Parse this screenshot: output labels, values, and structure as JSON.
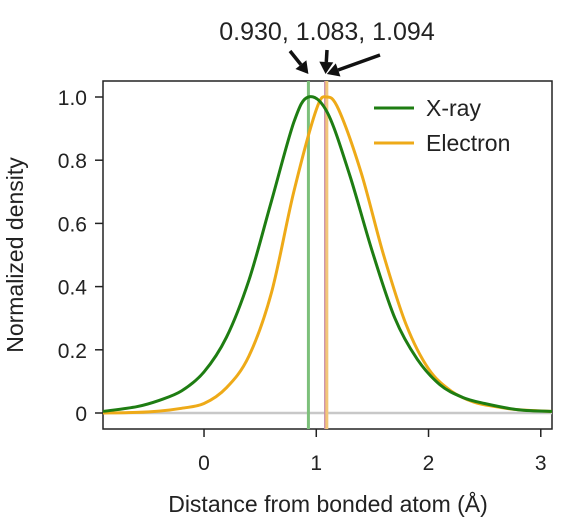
{
  "chart_data": {
    "type": "line",
    "title": "",
    "xlabel": "Distance from bonded atom (Å)",
    "ylabel": "Normalized density",
    "xlim": [
      -0.9,
      3.1
    ],
    "ylim": [
      0,
      1.0
    ],
    "x_ticks": [
      0,
      1,
      2,
      3
    ],
    "x_tick_labels": [
      "0",
      "1",
      "2",
      "3"
    ],
    "y_ticks": [
      0,
      0.2,
      0.4,
      0.6,
      0.8,
      1.0
    ],
    "y_tick_labels": [
      "0",
      "0.2",
      "0.4",
      "0.6",
      "0.8",
      "1.0"
    ],
    "grid": false,
    "legend_position": "top-right",
    "series": [
      {
        "name": "X-ray",
        "color": "#1e7d12",
        "x": [
          -0.9,
          -0.6,
          -0.4,
          -0.2,
          0.0,
          0.2,
          0.4,
          0.6,
          0.8,
          0.93,
          1.1,
          1.3,
          1.5,
          1.7,
          1.9,
          2.1,
          2.3,
          2.5,
          2.8,
          3.1
        ],
        "y": [
          0.005,
          0.02,
          0.04,
          0.07,
          0.13,
          0.24,
          0.42,
          0.67,
          0.92,
          1.0,
          0.95,
          0.75,
          0.51,
          0.3,
          0.17,
          0.09,
          0.05,
          0.03,
          0.01,
          0.005
        ]
      },
      {
        "name": "Electron",
        "color": "#eeaa18",
        "x": [
          -0.9,
          -0.6,
          -0.4,
          -0.2,
          0.0,
          0.2,
          0.4,
          0.6,
          0.8,
          1.0,
          1.094,
          1.2,
          1.4,
          1.6,
          1.8,
          2.0,
          2.2,
          2.4,
          2.6,
          2.8,
          3.1
        ],
        "y": [
          0.0,
          0.002,
          0.006,
          0.015,
          0.03,
          0.08,
          0.18,
          0.38,
          0.7,
          0.96,
          1.0,
          0.96,
          0.76,
          0.5,
          0.28,
          0.14,
          0.07,
          0.035,
          0.02,
          0.01,
          0.005
        ]
      }
    ],
    "vertical_lines": [
      {
        "x": 0.93,
        "color": "#7cc07a"
      },
      {
        "x": 1.083,
        "color": "#c88aa8"
      },
      {
        "x": 1.094,
        "color": "#f2c679"
      }
    ],
    "baseline": {
      "y": 0,
      "color": "#c8c8c8"
    },
    "annotation": {
      "text": "0.930, 1.083, 1.094",
      "arrow_targets": [
        0.93,
        1.083,
        1.094
      ]
    }
  }
}
